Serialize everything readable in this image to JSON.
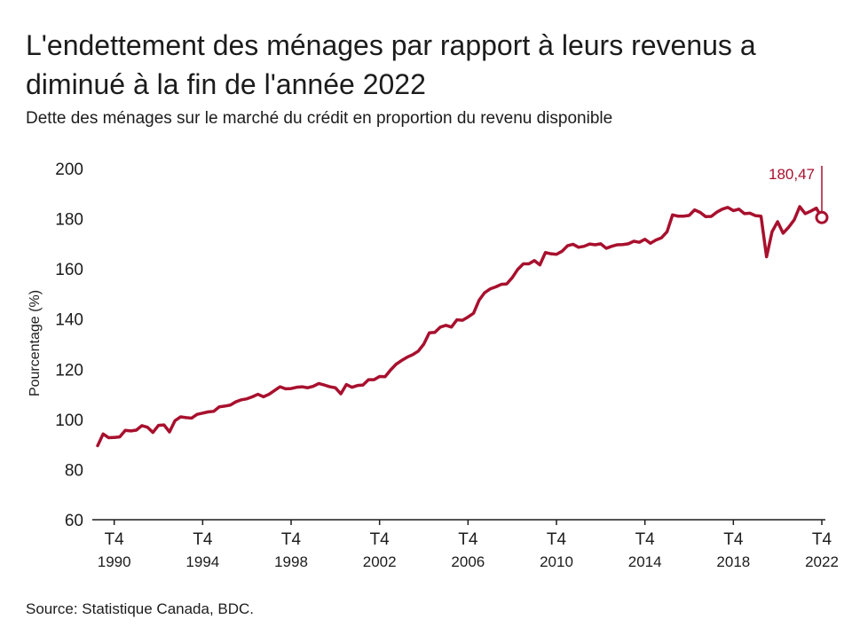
{
  "header": {
    "title": "L'endettement des ménages par rapport à leurs revenus a diminué à la fin de l'année 2022",
    "subtitle": "Dette des ménages sur le marché du crédit en proportion du revenu disponible"
  },
  "footer": {
    "source": "Source: Statistique Canada, BDC."
  },
  "colors": {
    "series": "#a8102e",
    "axis": "#1c1c1c",
    "text": "#1c1c1c"
  },
  "chart_data": {
    "type": "line",
    "title": "L'endettement des ménages par rapport à leurs revenus a diminué à la fin de l'année 2022",
    "subtitle": "Dette des ménages sur le marché du crédit en proportion du revenu disponible",
    "ylabel": "Pourcentage (%)",
    "xlabel": "",
    "ylim": [
      60,
      200
    ],
    "yticks": [
      60,
      80,
      100,
      120,
      140,
      160,
      180,
      200
    ],
    "grid": false,
    "xlim": [
      1990.0,
      2022.75
    ],
    "xticks": [
      {
        "x": 1990.75,
        "quarter": "T4",
        "year": "1990"
      },
      {
        "x": 1994.75,
        "quarter": "T4",
        "year": "1994"
      },
      {
        "x": 1998.75,
        "quarter": "T4",
        "year": "1998"
      },
      {
        "x": 2002.75,
        "quarter": "T4",
        "year": "2002"
      },
      {
        "x": 2006.75,
        "quarter": "T4",
        "year": "2006"
      },
      {
        "x": 2010.75,
        "quarter": "T4",
        "year": "2010"
      },
      {
        "x": 2014.75,
        "quarter": "T4",
        "year": "2014"
      },
      {
        "x": 2018.75,
        "quarter": "T4",
        "year": "2018"
      },
      {
        "x": 2022.75,
        "quarter": "T4",
        "year": "2022"
      }
    ],
    "annotation": {
      "x": 2022.75,
      "value": 180.47,
      "label": "180,47"
    },
    "series": [
      {
        "name": "",
        "points": [
          [
            1990.0,
            89.5
          ],
          [
            1990.25,
            94.2
          ],
          [
            1990.5,
            92.7
          ],
          [
            1990.75,
            92.8
          ],
          [
            1991.0,
            93.0
          ],
          [
            1991.25,
            95.6
          ],
          [
            1991.5,
            95.4
          ],
          [
            1991.75,
            95.7
          ],
          [
            1992.0,
            97.5
          ],
          [
            1992.25,
            96.9
          ],
          [
            1992.5,
            94.8
          ],
          [
            1992.75,
            97.6
          ],
          [
            1993.0,
            97.8
          ],
          [
            1993.25,
            95.0
          ],
          [
            1993.5,
            99.5
          ],
          [
            1993.75,
            101.0
          ],
          [
            1994.0,
            100.7
          ],
          [
            1994.25,
            100.5
          ],
          [
            1994.5,
            102.0
          ],
          [
            1994.75,
            102.5
          ],
          [
            1995.0,
            103.0
          ],
          [
            1995.25,
            103.2
          ],
          [
            1995.5,
            105.0
          ],
          [
            1995.75,
            105.3
          ],
          [
            1996.0,
            105.7
          ],
          [
            1996.25,
            107.0
          ],
          [
            1996.5,
            107.8
          ],
          [
            1996.75,
            108.2
          ],
          [
            1997.0,
            109.0
          ],
          [
            1997.25,
            110.0
          ],
          [
            1997.5,
            109.0
          ],
          [
            1997.75,
            110.0
          ],
          [
            1998.0,
            111.5
          ],
          [
            1998.25,
            113.0
          ],
          [
            1998.5,
            112.2
          ],
          [
            1998.75,
            112.3
          ],
          [
            1999.0,
            112.8
          ],
          [
            1999.25,
            113.0
          ],
          [
            1999.5,
            112.6
          ],
          [
            1999.75,
            113.2
          ],
          [
            2000.0,
            114.3
          ],
          [
            2000.25,
            113.7
          ],
          [
            2000.5,
            113.0
          ],
          [
            2000.75,
            112.6
          ],
          [
            2001.0,
            110.2
          ],
          [
            2001.25,
            113.9
          ],
          [
            2001.5,
            112.8
          ],
          [
            2001.75,
            113.5
          ],
          [
            2002.0,
            113.7
          ],
          [
            2002.25,
            115.8
          ],
          [
            2002.5,
            115.8
          ],
          [
            2002.75,
            117.1
          ],
          [
            2003.0,
            117.0
          ],
          [
            2003.25,
            119.7
          ],
          [
            2003.5,
            122.0
          ],
          [
            2003.75,
            123.5
          ],
          [
            2004.0,
            124.8
          ],
          [
            2004.25,
            125.8
          ],
          [
            2004.5,
            127.2
          ],
          [
            2004.75,
            130.0
          ],
          [
            2005.0,
            134.5
          ],
          [
            2005.25,
            134.7
          ],
          [
            2005.5,
            136.8
          ],
          [
            2005.75,
            137.5
          ],
          [
            2006.0,
            136.8
          ],
          [
            2006.25,
            139.7
          ],
          [
            2006.5,
            139.5
          ],
          [
            2006.75,
            140.8
          ],
          [
            2007.0,
            142.3
          ],
          [
            2007.25,
            147.5
          ],
          [
            2007.5,
            150.5
          ],
          [
            2007.75,
            152.0
          ],
          [
            2008.0,
            152.8
          ],
          [
            2008.25,
            153.8
          ],
          [
            2008.5,
            154.0
          ],
          [
            2008.75,
            156.5
          ],
          [
            2009.0,
            159.8
          ],
          [
            2009.25,
            162.0
          ],
          [
            2009.5,
            162.0
          ],
          [
            2009.75,
            163.3
          ],
          [
            2010.0,
            161.6
          ],
          [
            2010.25,
            166.5
          ],
          [
            2010.5,
            166.0
          ],
          [
            2010.75,
            165.8
          ],
          [
            2011.0,
            167.0
          ],
          [
            2011.25,
            169.2
          ],
          [
            2011.5,
            169.8
          ],
          [
            2011.75,
            168.6
          ],
          [
            2012.0,
            169.0
          ],
          [
            2012.25,
            169.9
          ],
          [
            2012.5,
            169.6
          ],
          [
            2012.75,
            170.0
          ],
          [
            2013.0,
            168.2
          ],
          [
            2013.25,
            169.0
          ],
          [
            2013.5,
            169.6
          ],
          [
            2013.75,
            169.7
          ],
          [
            2014.0,
            170.0
          ],
          [
            2014.25,
            171.0
          ],
          [
            2014.5,
            170.6
          ],
          [
            2014.75,
            171.8
          ],
          [
            2015.0,
            170.2
          ],
          [
            2015.25,
            171.5
          ],
          [
            2015.5,
            172.4
          ],
          [
            2015.75,
            174.8
          ],
          [
            2016.0,
            181.5
          ],
          [
            2016.25,
            181.0
          ],
          [
            2016.5,
            181.0
          ],
          [
            2016.75,
            181.3
          ],
          [
            2017.0,
            183.5
          ],
          [
            2017.25,
            182.5
          ],
          [
            2017.5,
            180.8
          ],
          [
            2017.75,
            180.9
          ],
          [
            2018.0,
            182.6
          ],
          [
            2018.25,
            183.8
          ],
          [
            2018.5,
            184.5
          ],
          [
            2018.75,
            183.2
          ],
          [
            2019.0,
            183.8
          ],
          [
            2019.25,
            182.0
          ],
          [
            2019.5,
            182.2
          ],
          [
            2019.75,
            181.2
          ],
          [
            2020.0,
            181.0
          ],
          [
            2020.25,
            164.8
          ],
          [
            2020.5,
            174.8
          ],
          [
            2020.75,
            178.8
          ],
          [
            2021.0,
            174.2
          ],
          [
            2021.25,
            176.6
          ],
          [
            2021.5,
            179.5
          ],
          [
            2021.75,
            184.8
          ],
          [
            2022.0,
            182.0
          ],
          [
            2022.25,
            183.0
          ],
          [
            2022.5,
            184.2
          ],
          [
            2022.75,
            180.47
          ]
        ]
      }
    ]
  }
}
